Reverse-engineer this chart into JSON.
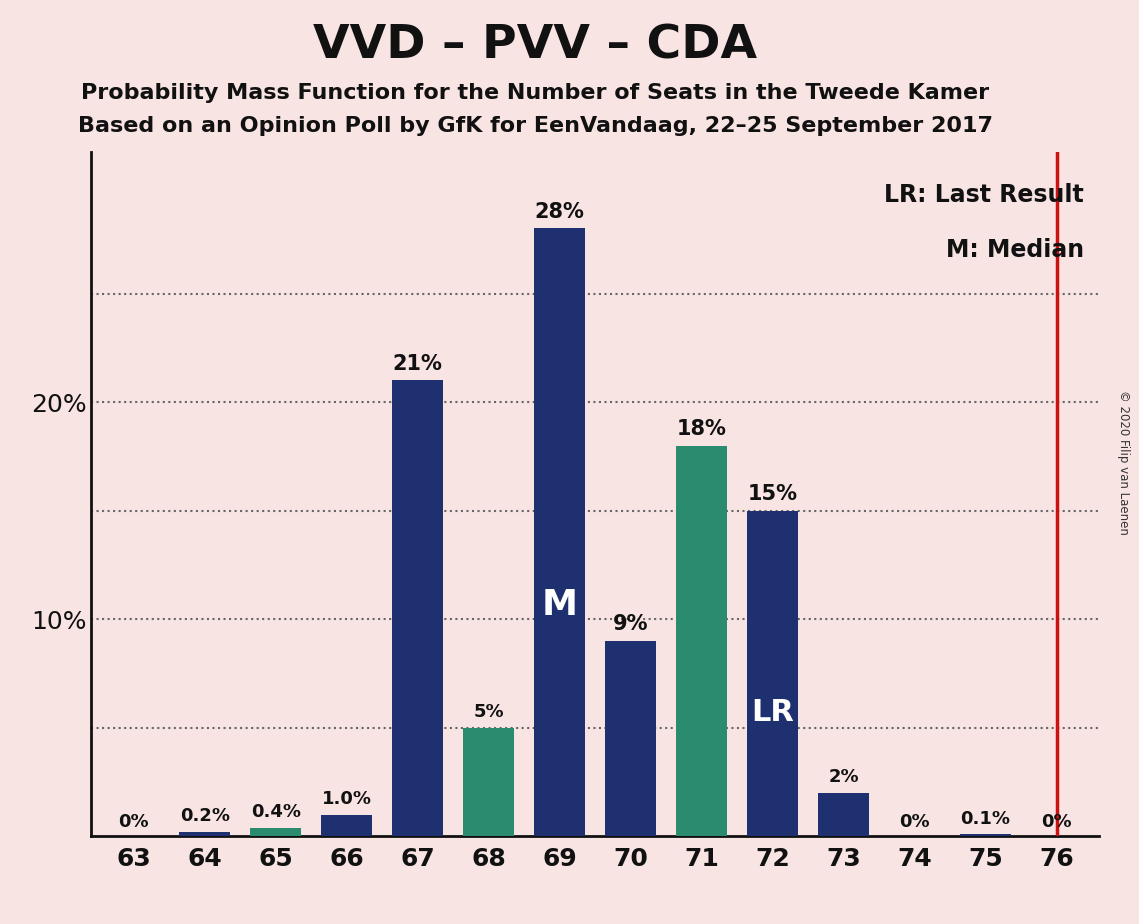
{
  "title": "VVD – PVV – CDA",
  "subtitle1": "Probability Mass Function for the Number of Seats in the Tweede Kamer",
  "subtitle2": "Based on an Opinion Poll by GfK for EenVandaag, 22–25 September 2017",
  "copyright": "© 2020 Filip van Laenen",
  "categories": [
    63,
    64,
    65,
    66,
    67,
    68,
    69,
    70,
    71,
    72,
    73,
    74,
    75,
    76
  ],
  "values": [
    0.0,
    0.2,
    0.4,
    1.0,
    21.0,
    5.0,
    28.0,
    9.0,
    18.0,
    15.0,
    2.0,
    0.0,
    0.1,
    0.0
  ],
  "labels": [
    "0%",
    "0.2%",
    "0.4%",
    "1.0%",
    "21%",
    "5%",
    "28%",
    "9%",
    "18%",
    "15%",
    "2%",
    "0%",
    "0.1%",
    "0%"
  ],
  "color_map": {
    "63": "#1e3070",
    "64": "#1e3070",
    "65": "#2a8b6e",
    "66": "#1e3070",
    "67": "#1e3070",
    "68": "#2a8b6e",
    "69": "#1e3070",
    "70": "#1e3070",
    "71": "#2a8b6e",
    "72": "#1e3070",
    "73": "#1e3070",
    "74": "#1e3070",
    "75": "#1e3070",
    "76": "#1e3070"
  },
  "median_cat": 69,
  "lr_cat": 72,
  "lr_line_cat": 76,
  "background_color": "#f9e4e4",
  "gridline_color": "#666666",
  "gridline_values": [
    5,
    10,
    15,
    20,
    25
  ],
  "ytick_labels": [
    10,
    20
  ],
  "ylim": [
    0,
    31.5
  ],
  "bar_width": 0.72,
  "legend_lr": "LR: Last Result",
  "legend_m": "M: Median",
  "title_fontsize": 34,
  "subtitle_fontsize": 16,
  "label_fontsize_small": 13,
  "label_fontsize_large": 15,
  "inside_label_fontsize": 26,
  "ytick_fontsize": 18,
  "xtick_fontsize": 18,
  "legend_fontsize": 17
}
